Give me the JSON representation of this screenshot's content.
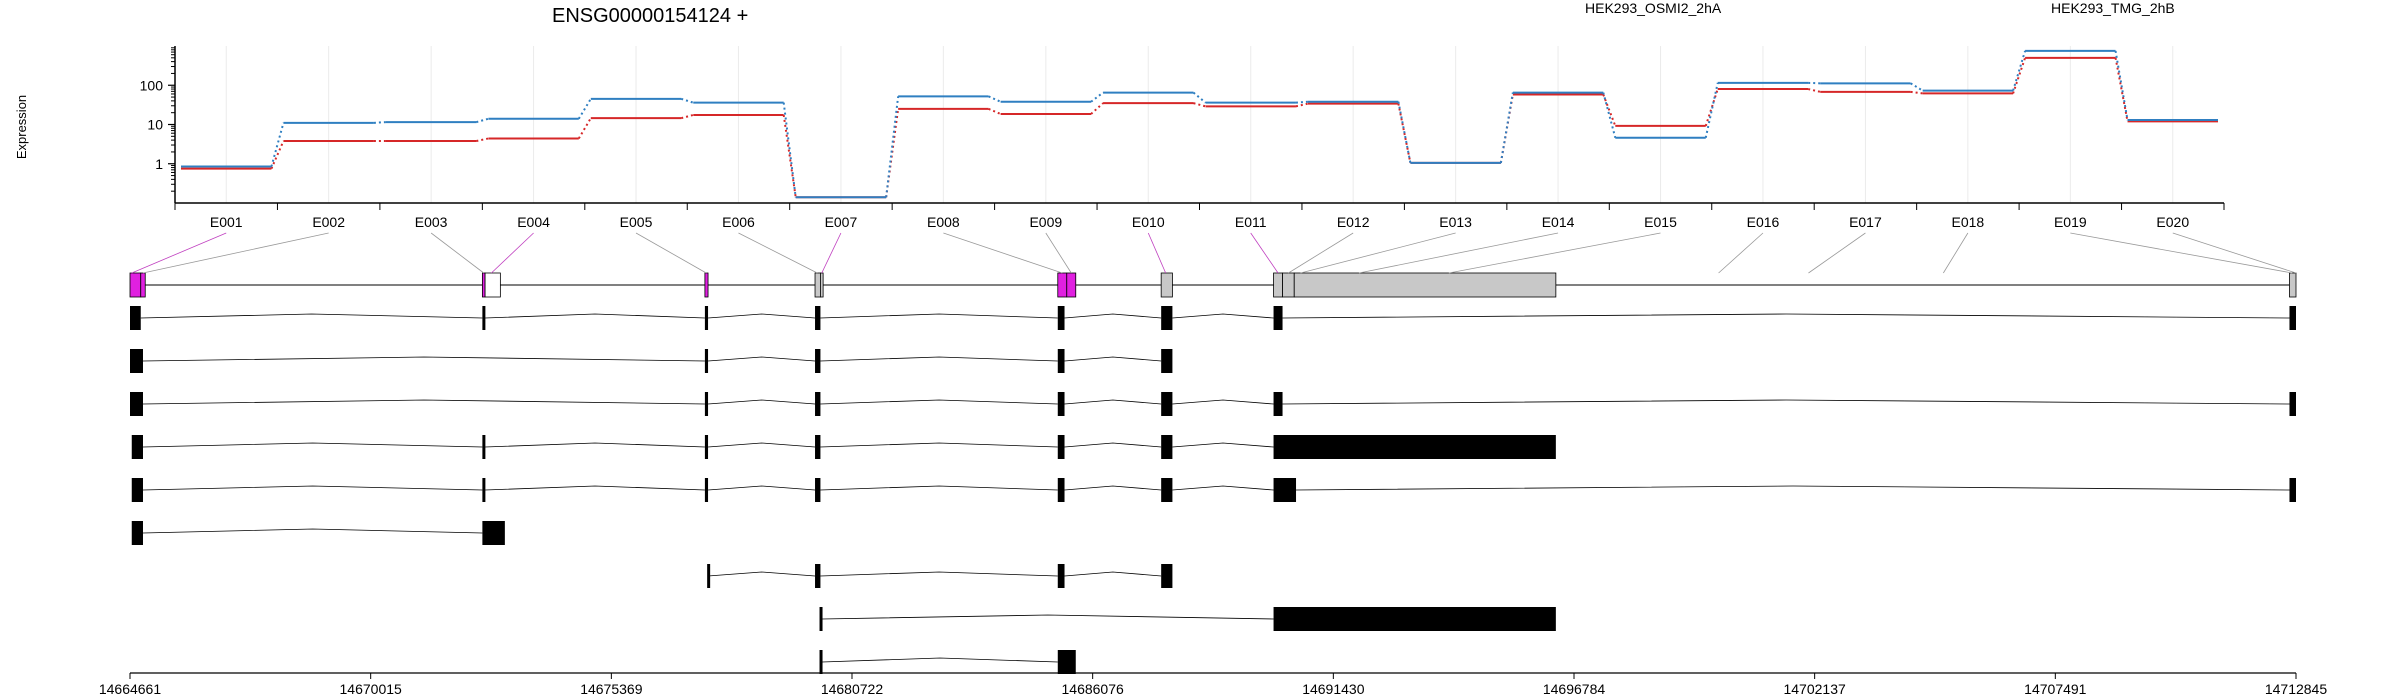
{
  "chart_data": {
    "type": "line",
    "title": "ENSG00000154124 +",
    "ylabel": "Expression",
    "yscale": "log",
    "yticks": [
      1,
      10,
      100
    ],
    "yticklabels": [
      "1",
      "10",
      "100"
    ],
    "categories": [
      "E001",
      "E002",
      "E003",
      "E004",
      "E005",
      "E006",
      "E007",
      "E008",
      "E009",
      "E010",
      "E011",
      "E012",
      "E013",
      "E014",
      "E015",
      "E016",
      "E017",
      "E018",
      "E019",
      "E020"
    ],
    "series": [
      {
        "name": "HEK293_OSMI2_2hA",
        "color": "#d62728",
        "values": [
          0.75,
          3.8,
          3.8,
          4.4,
          14.5,
          17.5,
          0.14,
          25,
          18.5,
          35,
          29,
          34,
          1.05,
          58,
          9.2,
          80,
          68,
          62,
          500,
          12
        ]
      },
      {
        "name": "HEK293_TMG_2hB",
        "color": "#2f7fc1",
        "values": [
          0.85,
          11,
          11.5,
          14,
          45,
          36,
          0.14,
          52,
          38,
          65,
          36,
          38,
          1.05,
          65,
          4.6,
          115,
          112,
          73,
          750,
          13
        ]
      }
    ],
    "genomic_ticks": [
      "14664661",
      "14670015",
      "14675369",
      "14680722",
      "14686076",
      "14691430",
      "14696784",
      "14702137",
      "14707491",
      "14712845"
    ]
  }
}
